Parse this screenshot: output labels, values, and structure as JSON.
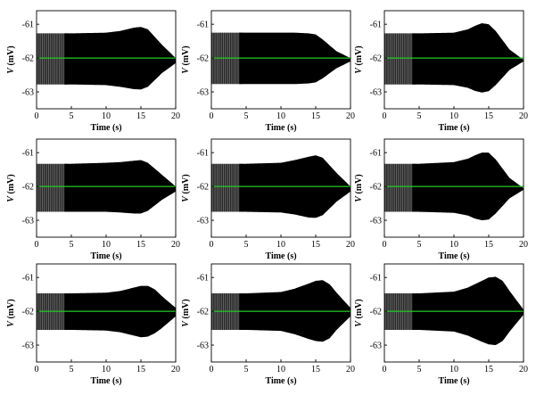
{
  "colors": {
    "trace": "#000000",
    "baseline": "#22cc22",
    "axis": "#000000",
    "background": "#ffffff"
  },
  "chart_data": [
    {
      "type": "line",
      "panel": "row1-col1",
      "xlabel": "Time (s)",
      "ylabel_italic": "V",
      "ylabel_rest": " (mV)",
      "xlim": [
        0,
        20
      ],
      "ylim": [
        -63.5,
        -60.6
      ],
      "xticks": [
        0,
        5,
        10,
        15,
        20
      ],
      "yticks": [
        -61,
        -62,
        -63
      ],
      "xtick_labels": [
        "0",
        "5",
        "10",
        "15",
        "20"
      ],
      "ytick_labels": [
        "-61",
        "-62",
        "-63"
      ],
      "baseline_value": -62.0,
      "series": [
        {
          "name": "envelope-upper",
          "x": [
            0,
            3,
            5,
            10,
            12,
            14,
            15,
            16,
            18,
            20
          ],
          "y": [
            -61.27,
            -61.27,
            -61.27,
            -61.25,
            -61.2,
            -61.1,
            -61.08,
            -61.15,
            -61.6,
            -62.0
          ]
        },
        {
          "name": "envelope-lower",
          "x": [
            0,
            3,
            5,
            10,
            12,
            14,
            15,
            16,
            18,
            20
          ],
          "y": [
            -62.78,
            -62.78,
            -62.78,
            -62.8,
            -62.85,
            -62.92,
            -62.93,
            -62.85,
            -62.45,
            -62.15
          ]
        }
      ]
    },
    {
      "type": "line",
      "panel": "row1-col2",
      "xlabel": "Time (s)",
      "ylabel_italic": "V",
      "ylabel_rest": " (mV)",
      "xlim": [
        0,
        20
      ],
      "ylim": [
        -63.5,
        -60.6
      ],
      "xticks": [
        0,
        5,
        10,
        15,
        20
      ],
      "yticks": [
        -61,
        -62,
        -63
      ],
      "xtick_labels": [
        "0",
        "5",
        "10",
        "15",
        "20"
      ],
      "ytick_labels": [
        "-61",
        "-62",
        "-63"
      ],
      "baseline_value": -62.0,
      "series": [
        {
          "name": "envelope-upper",
          "x": [
            0,
            3,
            5,
            10,
            12,
            14,
            15,
            16,
            18,
            20
          ],
          "y": [
            -61.25,
            -61.25,
            -61.25,
            -61.25,
            -61.25,
            -61.27,
            -61.3,
            -61.45,
            -61.8,
            -62.0
          ]
        },
        {
          "name": "envelope-lower",
          "x": [
            0,
            3,
            5,
            10,
            12,
            14,
            15,
            16,
            18,
            20
          ],
          "y": [
            -62.77,
            -62.77,
            -62.77,
            -62.77,
            -62.77,
            -62.75,
            -62.72,
            -62.6,
            -62.3,
            -62.1
          ]
        }
      ]
    },
    {
      "type": "line",
      "panel": "row1-col3",
      "xlabel": "Time (s)",
      "ylabel_italic": "V",
      "ylabel_rest": " (mV)",
      "xlim": [
        0,
        20
      ],
      "ylim": [
        -63.5,
        -60.6
      ],
      "xticks": [
        0,
        5,
        10,
        15,
        20
      ],
      "yticks": [
        -61,
        -62,
        -63
      ],
      "xtick_labels": [
        "0",
        "5",
        "10",
        "15",
        "20"
      ],
      "ytick_labels": [
        "-61",
        "-62",
        "-63"
      ],
      "baseline_value": -62.0,
      "series": [
        {
          "name": "envelope-upper",
          "x": [
            0,
            3,
            5,
            10,
            12,
            13,
            14,
            15,
            16,
            18,
            20
          ],
          "y": [
            -61.27,
            -61.27,
            -61.27,
            -61.25,
            -61.15,
            -61.05,
            -60.97,
            -61.0,
            -61.2,
            -61.75,
            -62.05
          ]
        },
        {
          "name": "envelope-lower",
          "x": [
            0,
            3,
            5,
            10,
            12,
            13,
            14,
            15,
            16,
            18,
            20
          ],
          "y": [
            -62.78,
            -62.78,
            -62.78,
            -62.8,
            -62.88,
            -62.97,
            -63.02,
            -62.98,
            -62.8,
            -62.35,
            -62.1
          ]
        }
      ]
    },
    {
      "type": "line",
      "panel": "row2-col1",
      "xlabel": "Time (s)",
      "ylabel_italic": "V",
      "ylabel_rest": " (mV)",
      "xlim": [
        0,
        20
      ],
      "ylim": [
        -63.5,
        -60.6
      ],
      "xticks": [
        0,
        5,
        10,
        15,
        20
      ],
      "yticks": [
        -61,
        -62,
        -63
      ],
      "xtick_labels": [
        "0",
        "5",
        "10",
        "15",
        "20"
      ],
      "ytick_labels": [
        "-61",
        "-62",
        "-63"
      ],
      "baseline_value": -62.0,
      "series": [
        {
          "name": "envelope-upper",
          "x": [
            0,
            3,
            5,
            10,
            12,
            14,
            15,
            16,
            18,
            20
          ],
          "y": [
            -61.33,
            -61.33,
            -61.33,
            -61.3,
            -61.28,
            -61.24,
            -61.22,
            -61.3,
            -61.65,
            -62.0
          ]
        },
        {
          "name": "envelope-lower",
          "x": [
            0,
            3,
            5,
            10,
            12,
            14,
            15,
            16,
            18,
            20
          ],
          "y": [
            -62.75,
            -62.75,
            -62.75,
            -62.75,
            -62.77,
            -62.8,
            -62.8,
            -62.72,
            -62.4,
            -62.15
          ]
        }
      ]
    },
    {
      "type": "line",
      "panel": "row2-col2",
      "xlabel": "Time (s)",
      "ylabel_italic": "V",
      "ylabel_rest": " (mV)",
      "xlim": [
        0,
        20
      ],
      "ylim": [
        -63.5,
        -60.6
      ],
      "xticks": [
        0,
        5,
        10,
        15,
        20
      ],
      "yticks": [
        -61,
        -62,
        -63
      ],
      "xtick_labels": [
        "0",
        "5",
        "10",
        "15",
        "20"
      ],
      "ytick_labels": [
        "-61",
        "-62",
        "-63"
      ],
      "baseline_value": -62.0,
      "series": [
        {
          "name": "envelope-upper",
          "x": [
            0,
            3,
            5,
            10,
            12,
            14,
            15,
            16,
            18,
            20
          ],
          "y": [
            -61.33,
            -61.33,
            -61.33,
            -61.3,
            -61.22,
            -61.12,
            -61.08,
            -61.15,
            -61.6,
            -62.0
          ]
        },
        {
          "name": "envelope-lower",
          "x": [
            0,
            3,
            5,
            10,
            12,
            14,
            15,
            16,
            18,
            20
          ],
          "y": [
            -62.75,
            -62.75,
            -62.75,
            -62.77,
            -62.83,
            -62.92,
            -62.93,
            -62.85,
            -62.45,
            -62.15
          ]
        }
      ]
    },
    {
      "type": "line",
      "panel": "row2-col3",
      "xlabel": "Time (s)",
      "ylabel_italic": "V",
      "ylabel_rest": " (mV)",
      "xlim": [
        0,
        20
      ],
      "ylim": [
        -63.5,
        -60.6
      ],
      "xticks": [
        0,
        5,
        10,
        15,
        20
      ],
      "yticks": [
        -61,
        -62,
        -63
      ],
      "xtick_labels": [
        "0",
        "5",
        "10",
        "15",
        "20"
      ],
      "ytick_labels": [
        "-61",
        "-62",
        "-63"
      ],
      "baseline_value": -62.0,
      "series": [
        {
          "name": "envelope-upper",
          "x": [
            0,
            3,
            5,
            10,
            12,
            13,
            14,
            15,
            16,
            18,
            20
          ],
          "y": [
            -61.33,
            -61.33,
            -61.33,
            -61.28,
            -61.18,
            -61.08,
            -61.0,
            -61.0,
            -61.2,
            -61.75,
            -62.05
          ]
        },
        {
          "name": "envelope-lower",
          "x": [
            0,
            3,
            5,
            10,
            12,
            13,
            14,
            15,
            16,
            18,
            20
          ],
          "y": [
            -62.75,
            -62.75,
            -62.75,
            -62.78,
            -62.86,
            -62.95,
            -63.0,
            -62.98,
            -62.8,
            -62.35,
            -62.1
          ]
        }
      ]
    },
    {
      "type": "line",
      "panel": "row3-col1",
      "xlabel": "Time (s)",
      "ylabel_italic": "V",
      "ylabel_rest": " (mV)",
      "xlim": [
        0,
        20
      ],
      "ylim": [
        -63.5,
        -60.6
      ],
      "xticks": [
        0,
        5,
        10,
        15,
        20
      ],
      "yticks": [
        -61,
        -62,
        -63
      ],
      "xtick_labels": [
        "0",
        "5",
        "10",
        "15",
        "20"
      ],
      "ytick_labels": [
        "-61",
        "-62",
        "-63"
      ],
      "baseline_value": -62.0,
      "series": [
        {
          "name": "envelope-upper",
          "x": [
            0,
            3,
            5,
            10,
            12,
            14,
            15,
            16,
            17,
            18,
            20
          ],
          "y": [
            -61.47,
            -61.47,
            -61.47,
            -61.45,
            -61.4,
            -61.3,
            -61.25,
            -61.25,
            -61.35,
            -61.55,
            -61.9
          ]
        },
        {
          "name": "envelope-lower",
          "x": [
            0,
            3,
            5,
            10,
            12,
            14,
            15,
            16,
            17,
            18,
            20
          ],
          "y": [
            -62.55,
            -62.55,
            -62.55,
            -62.57,
            -62.62,
            -62.72,
            -62.77,
            -62.75,
            -62.65,
            -62.5,
            -62.15
          ]
        }
      ]
    },
    {
      "type": "line",
      "panel": "row3-col2",
      "xlabel": "Time (s)",
      "ylabel_italic": "V",
      "ylabel_rest": " (mV)",
      "xlim": [
        0,
        20
      ],
      "ylim": [
        -63.5,
        -60.6
      ],
      "xticks": [
        0,
        5,
        10,
        15,
        20
      ],
      "yticks": [
        -61,
        -62,
        -63
      ],
      "xtick_labels": [
        "0",
        "5",
        "10",
        "15",
        "20"
      ],
      "ytick_labels": [
        "-61",
        "-62",
        "-63"
      ],
      "baseline_value": -62.0,
      "series": [
        {
          "name": "envelope-upper",
          "x": [
            0,
            3,
            5,
            10,
            12,
            14,
            15,
            16,
            17,
            18,
            20
          ],
          "y": [
            -61.47,
            -61.47,
            -61.47,
            -61.43,
            -61.33,
            -61.18,
            -61.1,
            -61.08,
            -61.2,
            -61.45,
            -61.9
          ]
        },
        {
          "name": "envelope-lower",
          "x": [
            0,
            3,
            5,
            10,
            12,
            14,
            15,
            16,
            17,
            18,
            20
          ],
          "y": [
            -62.55,
            -62.55,
            -62.55,
            -62.58,
            -62.68,
            -62.82,
            -62.88,
            -62.9,
            -62.8,
            -62.55,
            -62.15
          ]
        }
      ]
    },
    {
      "type": "line",
      "panel": "row3-col3",
      "xlabel": "Time (s)",
      "ylabel_italic": "V",
      "ylabel_rest": " (mV)",
      "xlim": [
        0,
        20
      ],
      "ylim": [
        -63.5,
        -60.6
      ],
      "xticks": [
        0,
        5,
        10,
        15,
        20
      ],
      "yticks": [
        -61,
        -62,
        -63
      ],
      "xtick_labels": [
        "0",
        "5",
        "10",
        "15",
        "20"
      ],
      "ytick_labels": [
        "-61",
        "-62",
        "-63"
      ],
      "baseline_value": -62.0,
      "series": [
        {
          "name": "envelope-upper",
          "x": [
            0,
            3,
            5,
            10,
            12,
            14,
            15,
            16,
            17,
            18,
            20
          ],
          "y": [
            -61.47,
            -61.47,
            -61.47,
            -61.42,
            -61.3,
            -61.1,
            -61.0,
            -60.98,
            -61.1,
            -61.4,
            -61.95
          ]
        },
        {
          "name": "envelope-lower",
          "x": [
            0,
            3,
            5,
            10,
            12,
            14,
            15,
            16,
            17,
            18,
            20
          ],
          "y": [
            -62.55,
            -62.55,
            -62.55,
            -62.6,
            -62.72,
            -62.9,
            -62.98,
            -63.0,
            -62.88,
            -62.6,
            -62.1
          ]
        }
      ]
    }
  ]
}
